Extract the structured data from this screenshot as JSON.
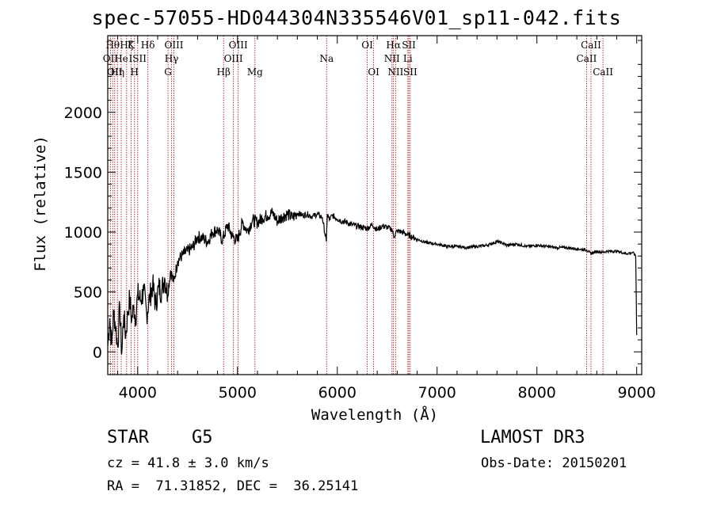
{
  "chart_data": {
    "type": "line",
    "title": "spec-57055-HD044304N335546V01_sp11-042.fits",
    "xlabel": "Wavelength (Å)",
    "ylabel": "Flux (relative)",
    "xlim": [
      3700,
      9050
    ],
    "ylim": [
      -190,
      2640
    ],
    "xticks": [
      {
        "value": 4000,
        "label": "4000"
      },
      {
        "value": 5000,
        "label": "5000"
      },
      {
        "value": 6000,
        "label": "6000"
      },
      {
        "value": 7000,
        "label": "7000"
      },
      {
        "value": 8000,
        "label": "8000"
      },
      {
        "value": 9000,
        "label": "9000"
      }
    ],
    "yticks": [
      {
        "value": 0,
        "label": "0"
      },
      {
        "value": 500,
        "label": "500"
      },
      {
        "value": 1000,
        "label": "1000"
      },
      {
        "value": 1500,
        "label": "1500"
      },
      {
        "value": 2000,
        "label": "2000"
      }
    ],
    "series": [
      {
        "name": "flux",
        "x": [
          3700,
          3720,
          3740,
          3760,
          3780,
          3800,
          3820,
          3840,
          3860,
          3880,
          3900,
          3920,
          3940,
          3960,
          3980,
          4000,
          4030,
          4060,
          4090,
          4120,
          4150,
          4180,
          4210,
          4240,
          4270,
          4300,
          4330,
          4360,
          4400,
          4450,
          4500,
          4550,
          4600,
          4650,
          4700,
          4750,
          4800,
          4850,
          4900,
          4950,
          5000,
          5050,
          5100,
          5150,
          5200,
          5250,
          5300,
          5350,
          5400,
          5450,
          5500,
          5550,
          5600,
          5650,
          5700,
          5750,
          5800,
          5850,
          5890,
          5900,
          5920,
          5950,
          6000,
          6050,
          6100,
          6150,
          6200,
          6250,
          6300,
          6350,
          6400,
          6450,
          6500,
          6550,
          6565,
          6600,
          6650,
          6700,
          6750,
          6800,
          6900,
          7000,
          7100,
          7200,
          7300,
          7400,
          7500,
          7600,
          7650,
          7700,
          7800,
          7900,
          8000,
          8100,
          8200,
          8300,
          8400,
          8500,
          8540,
          8600,
          8660,
          8700,
          8800,
          8900,
          8960,
          8990,
          9000
        ],
        "y": [
          50,
          280,
          60,
          340,
          200,
          40,
          390,
          -20,
          310,
          130,
          320,
          450,
          260,
          380,
          280,
          480,
          430,
          510,
          320,
          450,
          560,
          390,
          540,
          510,
          620,
          480,
          680,
          580,
          760,
          810,
          840,
          870,
          960,
          950,
          920,
          1000,
          1020,
          930,
          1060,
          960,
          930,
          1080,
          1010,
          1100,
          1080,
          1120,
          1140,
          1160,
          1090,
          1130,
          1150,
          1120,
          1160,
          1140,
          1150,
          1130,
          1150,
          1120,
          920,
          1150,
          1100,
          1140,
          1110,
          1090,
          1080,
          1060,
          1050,
          1040,
          1030,
          1060,
          1020,
          1050,
          1040,
          1020,
          960,
          1010,
          1000,
          980,
          960,
          940,
          910,
          900,
          880,
          880,
          870,
          880,
          890,
          920,
          910,
          890,
          900,
          880,
          890,
          880,
          870,
          870,
          860,
          850,
          820,
          840,
          830,
          840,
          840,
          820,
          830,
          800,
          140
        ],
        "color": "#000000"
      }
    ],
    "lines": [
      {
        "wl": 3727,
        "label": "OII",
        "tier": 1
      },
      {
        "wl": 3750,
        "label": "Hθ",
        "tier": 0
      },
      {
        "wl": 3770,
        "label": "OII",
        "tier": 2
      },
      {
        "wl": 3797,
        "label": "Hη",
        "tier": 2
      },
      {
        "wl": 3835,
        "label": "He",
        "tier": 1
      },
      {
        "wl": 3889,
        "label": "Hζ",
        "tier": 0
      },
      {
        "wl": 3934,
        "label": "K",
        "tier": 0
      },
      {
        "wl": 3968,
        "label": "H",
        "tier": 2
      },
      {
        "wl": 4000,
        "label": "ISII",
        "tier": 1
      },
      {
        "wl": 4102,
        "label": "Hδ",
        "tier": 0
      },
      {
        "wl": 4304,
        "label": "G",
        "tier": 2
      },
      {
        "wl": 4340,
        "label": "Hγ",
        "tier": 1
      },
      {
        "wl": 4363,
        "label": "OIII",
        "tier": 0
      },
      {
        "wl": 4861,
        "label": "Hβ",
        "tier": 2
      },
      {
        "wl": 4959,
        "label": "OIII",
        "tier": 1
      },
      {
        "wl": 5007,
        "label": "OIII",
        "tier": 0
      },
      {
        "wl": 5175,
        "label": "Mg",
        "tier": 2
      },
      {
        "wl": 5893,
        "label": "Na",
        "tier": 1
      },
      {
        "wl": 6300,
        "label": "OI",
        "tier": 0
      },
      {
        "wl": 6364,
        "label": "OI",
        "tier": 2
      },
      {
        "wl": 6548,
        "label": "NII",
        "tier": 1
      },
      {
        "wl": 6563,
        "label": "Hα",
        "tier": 0
      },
      {
        "wl": 6584,
        "label": "NII",
        "tier": 2
      },
      {
        "wl": 6707,
        "label": "Li",
        "tier": 1
      },
      {
        "wl": 6717,
        "label": "SII",
        "tier": 0
      },
      {
        "wl": 6731,
        "label": "SII",
        "tier": 2
      },
      {
        "wl": 8498,
        "label": "CaII",
        "tier": 1
      },
      {
        "wl": 8542,
        "label": "CaII",
        "tier": 0
      },
      {
        "wl": 8662,
        "label": "CaII",
        "tier": 2
      }
    ]
  },
  "info": {
    "object_class": "STAR",
    "subclass": "G5",
    "survey": "LAMOST DR3",
    "redshift": "cz = 41.8 ± 3.0 km/s",
    "obs_date": "Obs-Date: 20150201",
    "coords": "RA =  71.31852, DEC =  36.25141"
  }
}
